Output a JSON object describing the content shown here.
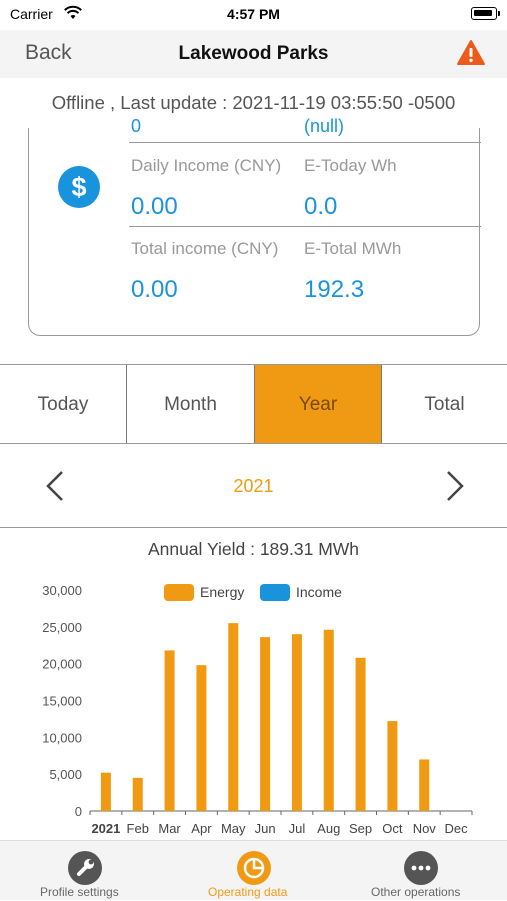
{
  "status_bar": {
    "carrier": "Carrier",
    "time": "4:57 PM"
  },
  "nav": {
    "back_label": "Back",
    "title": "Lakewood Parks"
  },
  "offline_text": "Offline , Last update : 2021-11-19 03:55:50 -0500",
  "card": {
    "partial_left": "0",
    "partial_right": "(null)",
    "daily_income_label": "Daily Income (CNY)",
    "daily_income_value": "0.00",
    "e_today_label": "E-Today Wh",
    "e_today_value": "0.0",
    "total_income_label": "Total income (CNY)",
    "total_income_value": "0.00",
    "e_total_label": "E-Total MWh",
    "e_total_value": "192.3"
  },
  "period_tabs": [
    {
      "label": "Today"
    },
    {
      "label": "Month"
    },
    {
      "label": "Year"
    },
    {
      "label": "Total"
    }
  ],
  "active_tab": "Year",
  "year_selector": {
    "year": "2021"
  },
  "annual_yield": "Annual Yield : 189.31 MWh",
  "colors": {
    "accent": "#f09a14",
    "blue": "#1a93dd"
  },
  "chart_data": {
    "type": "bar",
    "categories": [
      "2021",
      "Feb",
      "Mar",
      "Apr",
      "May",
      "Jun",
      "Jul",
      "Aug",
      "Sep",
      "Oct",
      "Nov",
      "Dec"
    ],
    "series": [
      {
        "name": "Energy",
        "color": "#f09a14",
        "values": [
          5200,
          4500,
          21800,
          19800,
          25500,
          23600,
          24000,
          24600,
          20800,
          12200,
          7000,
          0
        ]
      },
      {
        "name": "Income",
        "color": "#1a93dd",
        "values": [
          0,
          0,
          0,
          0,
          0,
          0,
          0,
          0,
          0,
          0,
          0,
          0
        ]
      }
    ],
    "y_ticks": [
      "0",
      "5,000",
      "10,000",
      "15,000",
      "20,000",
      "25,000",
      "30,000"
    ],
    "ylim": [
      0,
      30000
    ],
    "legend_position": "top",
    "grid": false
  },
  "tab_bar": [
    {
      "label": "Profile settings",
      "icon": "wrench-icon"
    },
    {
      "label": "Operating data",
      "icon": "pie-chart-icon"
    },
    {
      "label": "Other operations",
      "icon": "more-icon"
    }
  ]
}
